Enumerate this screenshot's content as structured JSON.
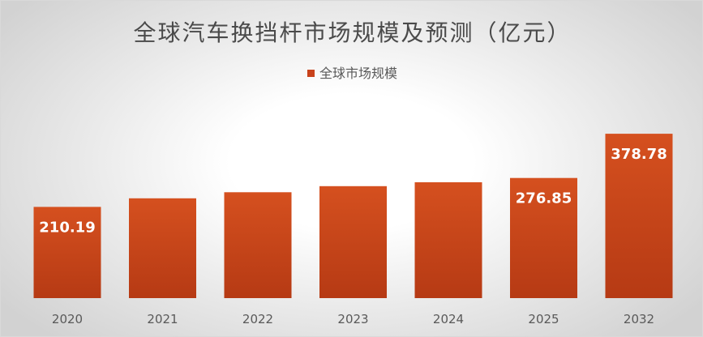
{
  "chart_data": {
    "type": "bar",
    "title": "全球汽车换挡杆市场规模及预测（亿元）",
    "xlabel": "",
    "ylabel": "",
    "categories": [
      "2020",
      "2021",
      "2022",
      "2023",
      "2024",
      "2025",
      "2032"
    ],
    "series": [
      {
        "name": "全球市场规模",
        "values": [
          210.19,
          230,
          244,
          258,
          267,
          276.85,
          378.78
        ],
        "data_labels": [
          "210.19",
          "",
          "",
          "",
          "",
          "276.85",
          "378.78"
        ],
        "color": "#c8421b"
      }
    ],
    "ylim": [
      0,
      420
    ],
    "grid": false,
    "legend": "top-center",
    "background_colors": [
      "#ffffff",
      "#d2d2d2"
    ]
  }
}
